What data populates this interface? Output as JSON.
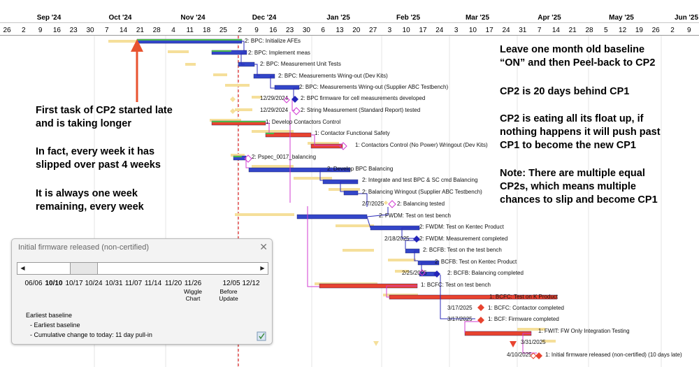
{
  "timeline": {
    "months": [
      {
        "label": "Sep '24",
        "x": 70
      },
      {
        "label": "Oct '24",
        "x": 172
      },
      {
        "label": "Nov '24",
        "x": 276
      },
      {
        "label": "Dec '24",
        "x": 378
      },
      {
        "label": "Jan '25",
        "x": 484
      },
      {
        "label": "Feb '25",
        "x": 584
      },
      {
        "label": "Mar '25",
        "x": 683
      },
      {
        "label": "Apr '25",
        "x": 786
      },
      {
        "label": "May '25",
        "x": 889
      },
      {
        "label": "Jun '25",
        "x": 982
      }
    ],
    "days": [
      "26",
      "2",
      "9",
      "16",
      "23",
      "30",
      "7",
      "14",
      "21",
      "28",
      "4",
      "11",
      "18",
      "25",
      "2",
      "9",
      "16",
      "23",
      "30",
      "6",
      "13",
      "20",
      "27",
      "3",
      "10",
      "17",
      "24",
      "3",
      "10",
      "17",
      "24",
      "31",
      "7",
      "14",
      "21",
      "28",
      "5",
      "12",
      "19",
      "26",
      "2",
      "9"
    ]
  },
  "tasks": [
    {
      "label": "2: BPC: Initialize AFEs",
      "date": ""
    },
    {
      "label": "2: BPC: Implement meas",
      "date": ""
    },
    {
      "label": "2: BPC: Measurement Unit Tests",
      "date": ""
    },
    {
      "label": "2: BPC: Measurements Wring-out (Dev Kits)",
      "date": ""
    },
    {
      "label": "2: BPC: Measurements Wring-out (Supplier ABC Testbench)",
      "date": ""
    },
    {
      "label": "2: BPC firmware for cell measurements developed",
      "date": "12/29/2024"
    },
    {
      "label": "2: String Measurement (Standard Report) tested",
      "date": "12/29/2024"
    },
    {
      "label": "1: Develop Contactors Control",
      "date": ""
    },
    {
      "label": "1: Contactor Functional Safety",
      "date": ""
    },
    {
      "label": "1: Contactors Control (No Power) Wringout (Dev Kits)",
      "date": ""
    },
    {
      "label": "2: Pspec_0017_balancing",
      "date": ""
    },
    {
      "label": "2: Develop BPC Balancing",
      "date": ""
    },
    {
      "label": "2: Integrate and test BPC & SC cmd Balancing",
      "date": ""
    },
    {
      "label": "2: Balancing Wringout (Supplier ABC Testbench)",
      "date": ""
    },
    {
      "label": "2: Balancing tested",
      "date": "2/7/2025"
    },
    {
      "label": "2: FWDM: Test on test bench",
      "date": ""
    },
    {
      "label": "2: FWDM: Test on Kentec Product",
      "date": ""
    },
    {
      "label": "2: FWDM: Measurement completed",
      "date": "2/18/2025"
    },
    {
      "label": "2: BCFB: Test on the test bench",
      "date": ""
    },
    {
      "label": "2: BCFB: Test on Kentec Product",
      "date": ""
    },
    {
      "label": "2: BCFB: Balancing completed",
      "date": "2/25/2025"
    },
    {
      "label": "1: BCFC: Test on test bench",
      "date": ""
    },
    {
      "label": "1: BCFC: Test on K Product",
      "date": ""
    },
    {
      "label": "1: BCFC: Contactor completed",
      "date": "3/17/2025"
    },
    {
      "label": "1: BCF: Firmware completed",
      "date": "3/17/2025"
    },
    {
      "label": "1: FWIT: FW Only Integration Testing",
      "date": ""
    },
    {
      "label": "",
      "date": "3/31/2025"
    },
    {
      "label": "1: Initial firmware released (non-certified)  (10 days late)",
      "date": "4/10/2025"
    }
  ],
  "annotations": {
    "left": [
      "First task of CP2 started late",
      "and is taking longer",
      "In fact, every week it has",
      "slipped over past 4 weeks",
      "It is always one week",
      "remaining, every week"
    ],
    "right": [
      "Leave one month old baseline",
      "“ON” and then Peel-back to CP2",
      "CP2 is 20 days behind CP1",
      "CP2 is eating all its float up, if",
      "nothing happens it will push past",
      "CP1 to become the new CP1",
      "Note: There are multiple equal",
      "CP2s, which means multiple",
      "chances to slip and become CP1"
    ]
  },
  "popup": {
    "title": "Initial firmware released (non-certified)",
    "close": "✕",
    "left_arrow": "◀",
    "right_arrow": "▶",
    "slider_position": 0.21,
    "ticks": [
      "06/06",
      "10/10",
      "10/17",
      "10/24",
      "10/31",
      "11/07",
      "11/14",
      "11/20",
      "11/26",
      "12/05",
      "12/12"
    ],
    "selected_tick": "10/10",
    "notes": [
      "Wiggle Chart",
      "Before Update"
    ],
    "info": [
      "Earliest baseline",
      "- Earliest baseline",
      "- Cumulative change to today: 11 day pull-in"
    ]
  },
  "colors": {
    "baseline": "#f5df9a",
    "cp1": "#e8432f",
    "cp2": "#3346c9",
    "progress": "#49b84a",
    "link": "#d23bd2",
    "linkBlue": "#2b2bb8",
    "today": "#e32626",
    "milestoneDiamond": "#2424b8"
  }
}
